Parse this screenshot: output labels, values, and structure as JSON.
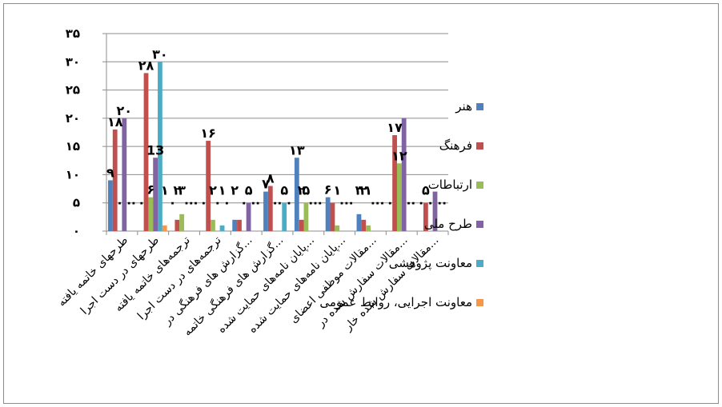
{
  "chart_data": {
    "type": "bar",
    "title": "",
    "xlabel": "",
    "ylabel": "",
    "ylim": [
      0,
      35
    ],
    "y_ticks": [
      0,
      5,
      10,
      15,
      20,
      25,
      30,
      35
    ],
    "y_tick_labels": [
      "۰",
      "۵",
      "۱۰",
      "۱۵",
      "۲۰",
      "۲۵",
      "۳۰",
      "۳۵"
    ],
    "grid": true,
    "legend_position": "right",
    "categories": [
      "طرحهای خاتمه یافته",
      "طرحهای در دست اجرا",
      "ترجمه‌های خاتمه یافته",
      "ترجمه‌های در دست اجرا",
      "گزارش های فرهنگی در...",
      "گزارش های فرهنگی خاتمه...",
      "پایان نامه‌های حمایت شده...",
      "پایان نامه‌های حمایت شده...",
      "مقالات موظفی اعضای...",
      "مقالات سفارش شده در...",
      "مقالات سفارش شده خار..."
    ],
    "series": [
      {
        "name": "هنر",
        "color": "#4F81BD",
        "values": [
          9,
          0,
          0,
          0,
          2,
          7,
          13,
          6,
          3,
          0,
          0
        ]
      },
      {
        "name": "فرهنگ",
        "color": "#C0504D",
        "values": [
          18,
          28,
          2,
          16,
          2,
          8,
          2,
          5,
          2,
          17,
          5
        ]
      },
      {
        "name": "ارتباطات",
        "color": "#9BBB59",
        "values": [
          0,
          6,
          3,
          2,
          0,
          0,
          5,
          1,
          1,
          12,
          0
        ]
      },
      {
        "name": "طرح ملی",
        "color": "#8064A2",
        "values": [
          20,
          13,
          0,
          0,
          5,
          0,
          0,
          0,
          0,
          20,
          7
        ]
      },
      {
        "name": "معاونت پژوهشی",
        "color": "#4BACC6",
        "values": [
          0,
          30,
          0,
          1,
          0,
          5,
          0,
          0,
          0,
          0,
          0
        ]
      },
      {
        "name": "معاونت اجرایی، روابط عمومی",
        "color": "#F79646",
        "values": [
          0,
          1,
          0,
          0,
          0,
          0,
          0,
          0,
          0,
          0,
          0
        ]
      }
    ],
    "data_labels": [
      {
        "category": 0,
        "series": 0,
        "text": "۹"
      },
      {
        "category": 0,
        "series": 1,
        "text": "۱۸"
      },
      {
        "category": 0,
        "series": 3,
        "text": "۲۰"
      },
      {
        "category": 1,
        "series": 1,
        "text": "۲۸"
      },
      {
        "category": 1,
        "series": 2,
        "text": "۶"
      },
      {
        "category": 1,
        "series": 3,
        "text": "13"
      },
      {
        "category": 1,
        "series": 4,
        "text": "۳۰"
      },
      {
        "category": 1,
        "series": 5,
        "text": "۱"
      },
      {
        "category": 2,
        "series": 1,
        "text": "۲"
      },
      {
        "category": 2,
        "series": 2,
        "text": "۳"
      },
      {
        "category": 3,
        "series": 1,
        "text": "۱۶"
      },
      {
        "category": 3,
        "series": 2,
        "text": "۲"
      },
      {
        "category": 3,
        "series": 4,
        "text": "۱"
      },
      {
        "category": 4,
        "series": 0,
        "text": "۲"
      },
      {
        "category": 4,
        "series": 3,
        "text": "۵"
      },
      {
        "category": 5,
        "series": 0,
        "text": "۷"
      },
      {
        "category": 5,
        "series": 1,
        "text": "۸"
      },
      {
        "category": 5,
        "series": 4,
        "text": "۵"
      },
      {
        "category": 6,
        "series": 0,
        "text": "۱۳"
      },
      {
        "category": 6,
        "series": 1,
        "text": "۲"
      },
      {
        "category": 6,
        "series": 2,
        "text": "۵"
      },
      {
        "category": 7,
        "series": 0,
        "text": "۶"
      },
      {
        "category": 7,
        "series": 2,
        "text": "۱"
      },
      {
        "category": 8,
        "series": 0,
        "text": "۳"
      },
      {
        "category": 8,
        "series": 1,
        "text": "۲"
      },
      {
        "category": 8,
        "series": 2,
        "text": "۱"
      },
      {
        "category": 9,
        "series": 1,
        "text": "۱۷"
      },
      {
        "category": 9,
        "series": 2,
        "text": "۱۲"
      },
      {
        "category": 10,
        "series": 1,
        "text": "۵"
      }
    ],
    "zero_label": "۰"
  }
}
